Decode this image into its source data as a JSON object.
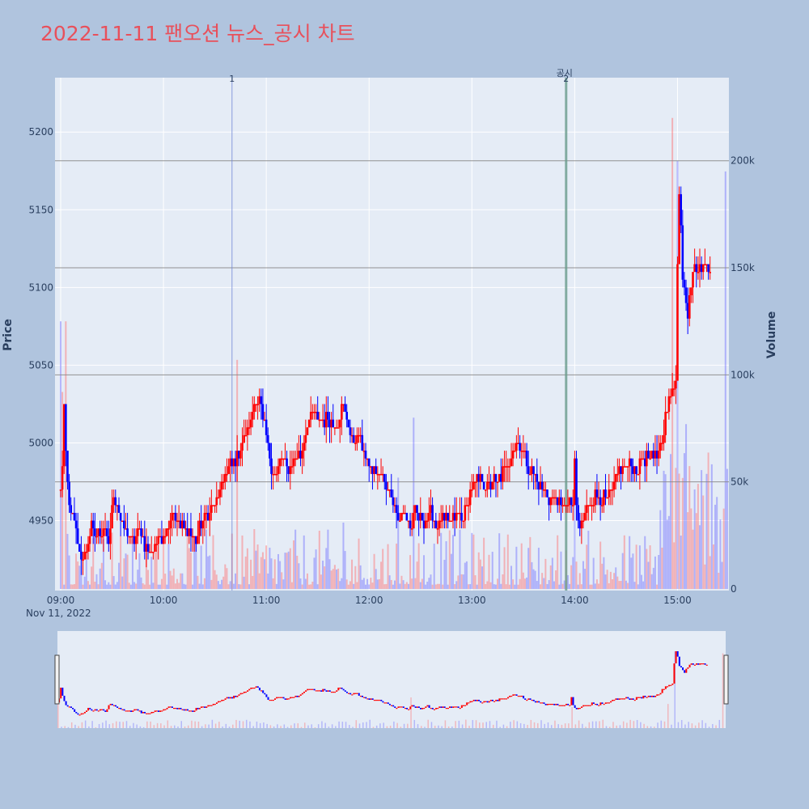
{
  "title": "2022-11-11 팬오션 뉴스_공시 차트",
  "colors": {
    "background": "#b0c4de",
    "plot_bg": "#e5ecf6",
    "up": "#ff0000",
    "down": "#0000ff",
    "title": "#e8505b"
  },
  "chart_data": {
    "type": "candlestick",
    "title": "2022-11-11 팬오션 뉴스_공시 차트",
    "date_label": "Nov 11, 2022",
    "x_range": [
      "09:00",
      "15:30"
    ],
    "x_ticks": [
      "09:00",
      "10:00",
      "11:00",
      "12:00",
      "13:00",
      "14:00",
      "15:00"
    ],
    "y_left": {
      "label": "Price",
      "range": [
        4905,
        5235
      ],
      "ticks": [
        4950,
        5000,
        5050,
        5100,
        5150,
        5200
      ]
    },
    "y_right": {
      "label": "Volume",
      "range": [
        0,
        232000
      ],
      "ticks": [
        0,
        50000,
        100000,
        150000,
        200000
      ],
      "tick_labels": [
        "0",
        "50k",
        "100k",
        "150k",
        "200k"
      ]
    },
    "price_keypoints": [
      [
        "09:00",
        4970
      ],
      [
        "09:01",
        4985
      ],
      [
        "09:02",
        5025
      ],
      [
        "09:03",
        4990
      ],
      [
        "09:05",
        4960
      ],
      [
        "09:08",
        4950
      ],
      [
        "09:10",
        4935
      ],
      [
        "09:12",
        4925
      ],
      [
        "09:15",
        4930
      ],
      [
        "09:18",
        4945
      ],
      [
        "09:21",
        4940
      ],
      [
        "09:25",
        4945
      ],
      [
        "09:28",
        4935
      ],
      [
        "09:31",
        4970
      ],
      [
        "09:34",
        4955
      ],
      [
        "09:37",
        4945
      ],
      [
        "09:40",
        4940
      ],
      [
        "09:43",
        4935
      ],
      [
        "09:46",
        4945
      ],
      [
        "09:49",
        4935
      ],
      [
        "09:52",
        4930
      ],
      [
        "09:55",
        4935
      ],
      [
        "09:58",
        4940
      ],
      [
        "10:02",
        4945
      ],
      [
        "10:05",
        4955
      ],
      [
        "10:08",
        4950
      ],
      [
        "10:11",
        4945
      ],
      [
        "10:14",
        4945
      ],
      [
        "10:17",
        4940
      ],
      [
        "10:19",
        4935
      ],
      [
        "10:21",
        4945
      ],
      [
        "10:24",
        4950
      ],
      [
        "10:27",
        4955
      ],
      [
        "10:30",
        4960
      ],
      [
        "10:33",
        4970
      ],
      [
        "10:36",
        4980
      ],
      [
        "10:39",
        4985
      ],
      [
        "10:42",
        4990
      ],
      [
        "10:45",
        4995
      ],
      [
        "10:48",
        5005
      ],
      [
        "10:51",
        5015
      ],
      [
        "10:53",
        5025
      ],
      [
        "10:56",
        5030
      ],
      [
        "10:58",
        5015
      ],
      [
        "11:00",
        5005
      ],
      [
        "11:03",
        4985
      ],
      [
        "11:06",
        4980
      ],
      [
        "11:09",
        4990
      ],
      [
        "11:12",
        4985
      ],
      [
        "11:15",
        4985
      ],
      [
        "11:18",
        4990
      ],
      [
        "11:21",
        4995
      ],
      [
        "11:24",
        5015
      ],
      [
        "11:27",
        5020
      ],
      [
        "11:30",
        5015
      ],
      [
        "11:33",
        5015
      ],
      [
        "11:36",
        5015
      ],
      [
        "11:39",
        5010
      ],
      [
        "11:42",
        5015
      ],
      [
        "11:45",
        5025
      ],
      [
        "11:48",
        5010
      ],
      [
        "11:51",
        5000
      ],
      [
        "11:54",
        5005
      ],
      [
        "11:57",
        4995
      ],
      [
        "12:00",
        4985
      ],
      [
        "12:03",
        4980
      ],
      [
        "12:06",
        4980
      ],
      [
        "12:09",
        4975
      ],
      [
        "12:12",
        4970
      ],
      [
        "12:15",
        4960
      ],
      [
        "12:18",
        4950
      ],
      [
        "12:21",
        4955
      ],
      [
        "12:24",
        4945
      ],
      [
        "12:27",
        4955
      ],
      [
        "12:30",
        4950
      ],
      [
        "12:33",
        4950
      ],
      [
        "12:36",
        4955
      ],
      [
        "12:39",
        4945
      ],
      [
        "12:42",
        4950
      ],
      [
        "12:45",
        4950
      ],
      [
        "12:48",
        4950
      ],
      [
        "12:51",
        4955
      ],
      [
        "12:54",
        4950
      ],
      [
        "12:57",
        4960
      ],
      [
        "13:00",
        4970
      ],
      [
        "13:03",
        4975
      ],
      [
        "13:06",
        4975
      ],
      [
        "13:09",
        4970
      ],
      [
        "13:12",
        4975
      ],
      [
        "13:15",
        4975
      ],
      [
        "13:18",
        4980
      ],
      [
        "13:21",
        4985
      ],
      [
        "13:24",
        4995
      ],
      [
        "13:27",
        5000
      ],
      [
        "13:30",
        4995
      ],
      [
        "13:33",
        4985
      ],
      [
        "13:36",
        4980
      ],
      [
        "13:39",
        4975
      ],
      [
        "13:42",
        4970
      ],
      [
        "13:45",
        4965
      ],
      [
        "13:48",
        4965
      ],
      [
        "13:51",
        4960
      ],
      [
        "13:54",
        4960
      ],
      [
        "13:57",
        4960
      ],
      [
        "13:59",
        4960
      ],
      [
        "14:00",
        4985
      ],
      [
        "14:01",
        4960
      ],
      [
        "14:03",
        4945
      ],
      [
        "14:05",
        4950
      ],
      [
        "14:07",
        4960
      ],
      [
        "14:10",
        4965
      ],
      [
        "14:13",
        4965
      ],
      [
        "14:16",
        4965
      ],
      [
        "14:19",
        4965
      ],
      [
        "14:22",
        4970
      ],
      [
        "14:25",
        4980
      ],
      [
        "14:28",
        4985
      ],
      [
        "14:31",
        4985
      ],
      [
        "14:34",
        4985
      ],
      [
        "14:37",
        4985
      ],
      [
        "14:40",
        4990
      ],
      [
        "14:43",
        4990
      ],
      [
        "14:46",
        4990
      ],
      [
        "14:49",
        4995
      ],
      [
        "14:52",
        5010
      ],
      [
        "14:55",
        5025
      ],
      [
        "14:57",
        5035
      ],
      [
        "14:59",
        5045
      ],
      [
        "15:00",
        5115
      ],
      [
        "15:01",
        5160
      ],
      [
        "15:02",
        5140
      ],
      [
        "15:03",
        5110
      ],
      [
        "15:05",
        5090
      ],
      [
        "15:06",
        5085
      ],
      [
        "15:07",
        5100
      ],
      [
        "15:09",
        5110
      ],
      [
        "15:11",
        5115
      ],
      [
        "15:13",
        5110
      ],
      [
        "15:15",
        5115
      ],
      [
        "15:17",
        5115
      ],
      [
        "15:19",
        5115
      ]
    ],
    "volume_spikes": [
      [
        "09:00",
        125000
      ],
      [
        "09:01",
        92000
      ],
      [
        "09:03",
        125000
      ],
      [
        "10:43",
        107000
      ],
      [
        "11:45",
        31000
      ],
      [
        "12:17",
        52000
      ],
      [
        "12:26",
        80000
      ],
      [
        "13:55",
        18000
      ],
      [
        "14:00",
        55000
      ],
      [
        "14:56",
        63000
      ],
      [
        "14:57",
        220000
      ],
      [
        "15:00",
        200000
      ],
      [
        "15:05",
        77000
      ],
      [
        "15:28",
        195000
      ]
    ],
    "annotations": [
      {
        "time": "10:40",
        "label": "1",
        "color": "#6f86d6"
      },
      {
        "time": "13:55",
        "label": "2",
        "color": "#6a9c8c",
        "caption": "공시"
      }
    ]
  }
}
